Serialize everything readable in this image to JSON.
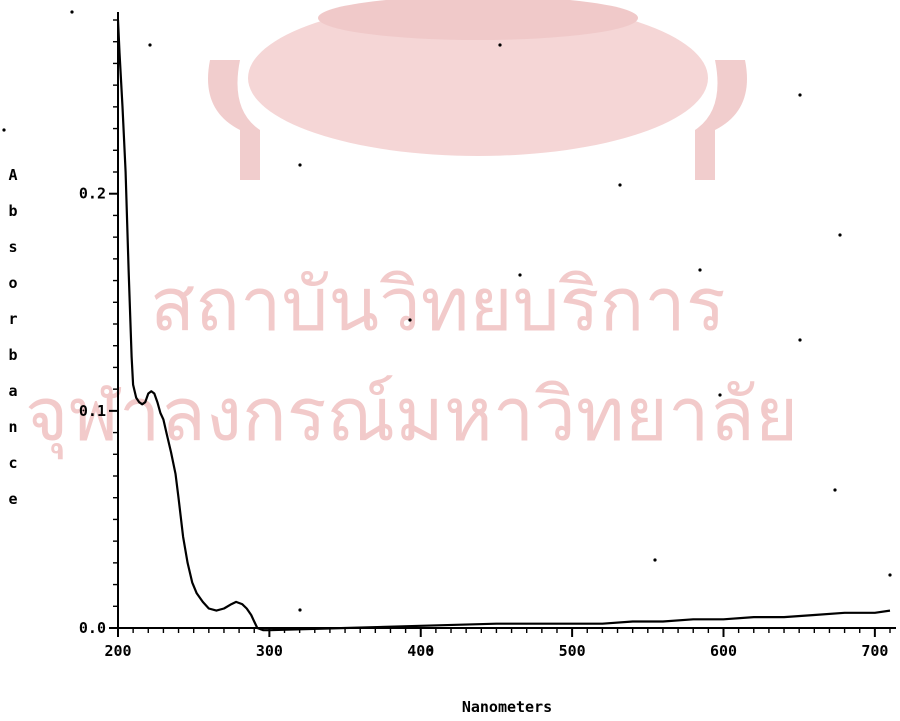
{
  "watermark": {
    "line1": "สถาบันวิทยบริการ",
    "line2": "จุฬาลงกรณ์มหาวิทยาลัย",
    "seal_color": "#f4d2d2",
    "text_color": "#f2caca"
  },
  "chart_data": {
    "type": "line",
    "title": "",
    "xlabel": "Nanometers",
    "ylabel": "Absorbance",
    "xlim": [
      200,
      710
    ],
    "ylim": [
      0.0,
      0.28
    ],
    "x_ticks": [
      {
        "value": 200,
        "label": "200"
      },
      {
        "value": 300,
        "label": "300"
      },
      {
        "value": 400,
        "label": "400"
      },
      {
        "value": 500,
        "label": "500"
      },
      {
        "value": 600,
        "label": "600"
      },
      {
        "value": 700,
        "label": "700"
      }
    ],
    "y_ticks": [
      {
        "value": 0.0,
        "label": "0.0"
      },
      {
        "value": 0.1,
        "label": "0.1"
      },
      {
        "value": 0.2,
        "label": "0.2"
      }
    ],
    "grid": false,
    "line_color": "#000000",
    "series": [
      {
        "x": [
          200,
          201,
          203,
          205,
          207,
          209,
          210,
          212,
          214,
          216,
          218,
          220,
          222,
          224,
          226,
          228,
          230,
          232,
          235,
          238,
          240,
          243,
          246,
          249,
          252,
          256,
          260,
          265,
          270,
          275,
          278,
          282,
          285,
          288,
          290,
          292,
          296,
          300,
          350,
          400,
          450,
          500,
          520,
          540,
          560,
          580,
          600,
          620,
          640,
          660,
          680,
          700,
          710
        ],
        "y": [
          0.28,
          0.265,
          0.24,
          0.21,
          0.165,
          0.125,
          0.112,
          0.106,
          0.104,
          0.103,
          0.104,
          0.108,
          0.109,
          0.108,
          0.104,
          0.099,
          0.096,
          0.09,
          0.081,
          0.071,
          0.06,
          0.042,
          0.03,
          0.021,
          0.016,
          0.012,
          0.009,
          0.008,
          0.009,
          0.011,
          0.012,
          0.011,
          0.009,
          0.006,
          0.003,
          0.0,
          -0.001,
          -0.001,
          0.0,
          0.001,
          0.002,
          0.002,
          0.002,
          0.003,
          0.003,
          0.004,
          0.004,
          0.005,
          0.005,
          0.006,
          0.007,
          0.007,
          0.008
        ]
      }
    ]
  }
}
